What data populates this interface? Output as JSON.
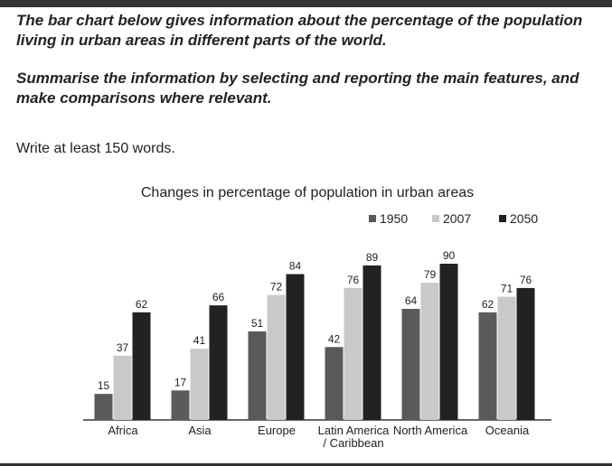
{
  "document": {
    "task": "The bar chart below gives information about the percentage of the population living in urban areas in different parts of the world.",
    "instruction": "Summarise the information by selecting and reporting the main features, and make comparisons where relevant.",
    "word_count": "Write at least 150 words."
  },
  "chart_data": {
    "type": "bar",
    "title": "Changes in percentage of population in urban areas",
    "categories": [
      "Africa",
      "Asia",
      "Europe",
      "Latin America / Caribbean",
      "North America",
      "Oceania"
    ],
    "series": [
      {
        "name": "1950",
        "color": "#5a5a5a",
        "values": [
          15,
          17,
          51,
          42,
          64,
          62
        ]
      },
      {
        "name": "2007",
        "color": "#c9c9c9",
        "values": [
          37,
          41,
          72,
          76,
          79,
          71
        ]
      },
      {
        "name": "2050",
        "color": "#222222",
        "values": [
          62,
          66,
          84,
          89,
          90,
          76
        ]
      }
    ],
    "legend": "top-right"
  }
}
